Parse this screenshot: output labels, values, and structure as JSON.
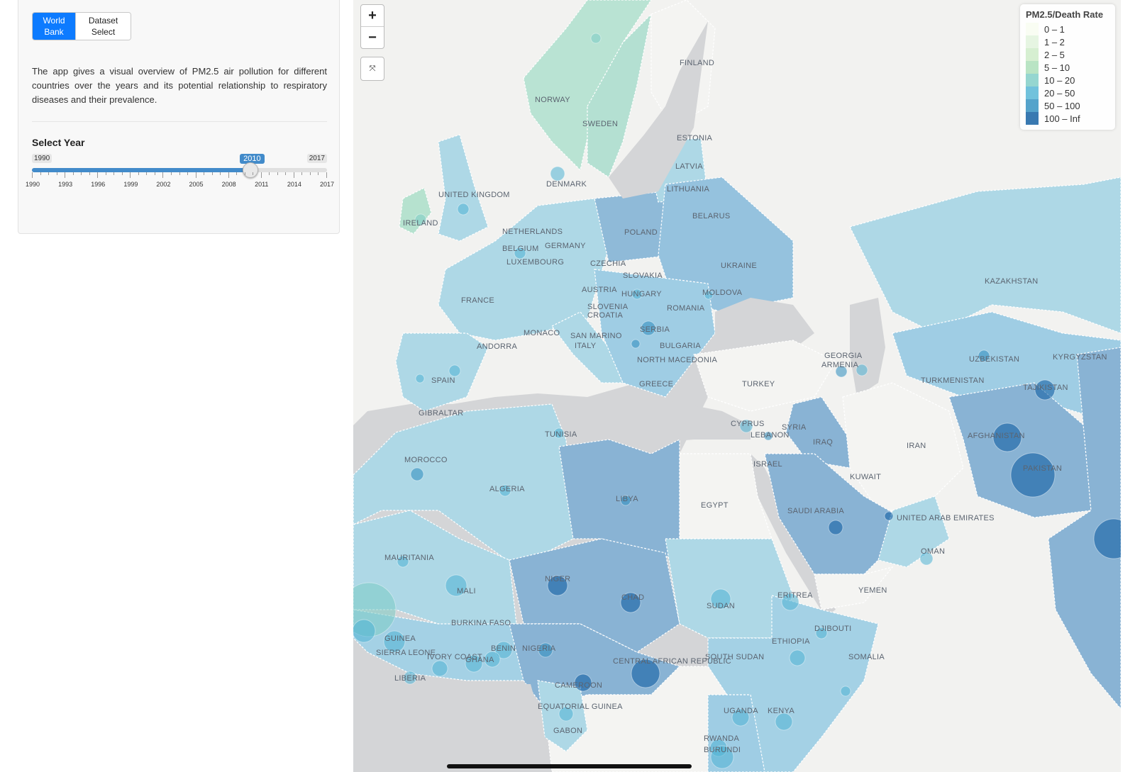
{
  "sidebar": {
    "source_buttons": {
      "world_bank": "World\nBank",
      "dataset_select": "Dataset\nSelect"
    },
    "description": "The app gives a visual overview of PM2.5 air pollution for different countries over the years and its potential relationship to respiratory diseases and their prevalence.",
    "year_slider": {
      "label": "Select Year",
      "min": 1990,
      "max": 2017,
      "value": 2010,
      "min_label": "1990",
      "max_label": "2017",
      "value_label": "2010",
      "tick_labels": [
        "1990",
        "1993",
        "1996",
        "1999",
        "2002",
        "2005",
        "2008",
        "2011",
        "2014",
        "2017"
      ]
    }
  },
  "map": {
    "zoom_in": "+",
    "zoom_out": "−",
    "fullscreen_icon": "⤧",
    "legend": {
      "title": "PM2.5/Death Rate",
      "items": [
        {
          "label": "0 – 1",
          "color": "#f7fcf0"
        },
        {
          "label": "1 – 2",
          "color": "#e0f3db"
        },
        {
          "label": "2 – 5",
          "color": "#ccebc5"
        },
        {
          "label": "5 – 10",
          "color": "#a8ddb5"
        },
        {
          "label": "10 – 20",
          "color": "#7bccc4"
        },
        {
          "label": "20 – 50",
          "color": "#4eb3d3"
        },
        {
          "label": "50 – 100",
          "color": "#2b8cbe"
        },
        {
          "label": "100 – Inf",
          "color": "#08589e"
        }
      ]
    },
    "country_labels": [
      "FINLAND",
      "NORWAY",
      "SWEDEN",
      "ESTONIA",
      "LATVIA",
      "LITHUANIA",
      "DENMARK",
      "UNITED KINGDOM",
      "IRELAND",
      "NETHERLANDS",
      "BELGIUM",
      "LUXEMBOURG",
      "GERMANY",
      "POLAND",
      "BELARUS",
      "CZECHIA",
      "SLOVAKIA",
      "UKRAINE",
      "FRANCE",
      "AUSTRIA",
      "HUNGARY",
      "MOLDOVA",
      "SLOVENIA",
      "CROATIA",
      "ROMANIA",
      "SERBIA",
      "MONACO",
      "SAN MARINO",
      "ITALY",
      "BULGARIA",
      "NORTH MACEDONIA",
      "ANDORRA",
      "SPAIN",
      "GREECE",
      "GIBRALTAR",
      "GEORGIA",
      "ARMENIA",
      "TURKEY",
      "KAZAKHSTAN",
      "UZBEKISTAN",
      "KYRGYZSTAN",
      "TURKMENISTAN",
      "TAJIKISTAN",
      "CYPRUS",
      "LEBANON",
      "SYRIA",
      "ISRAEL",
      "IRAQ",
      "IRAN",
      "AFGHANISTAN",
      "PAKISTAN",
      "KUWAIT",
      "TUNISIA",
      "MOROCCO",
      "ALGERIA",
      "LIBYA",
      "EGYPT",
      "SAUDI ARABIA",
      "UNITED ARAB EMIRATES",
      "OMAN",
      "YEMEN",
      "MAURITANIA",
      "MALI",
      "NIGER",
      "CHAD",
      "SUDAN",
      "ERITREA",
      "DJIBOUTI",
      "BURKINA FASO",
      "GUINEA",
      "SIERRA LEONE",
      "LIBERIA",
      "IVORY COAST",
      "GHANA",
      "BENIN",
      "NIGERIA",
      "ETHIOPIA",
      "SOMALIA",
      "SOUTH SUDAN",
      "CENTRAL AFRICAN REPUBLIC",
      "CAMEROON",
      "EQUATORIAL GUINEA",
      "GABON",
      "UGANDA",
      "KENYA",
      "RWANDA",
      "BURUNDI"
    ]
  }
}
